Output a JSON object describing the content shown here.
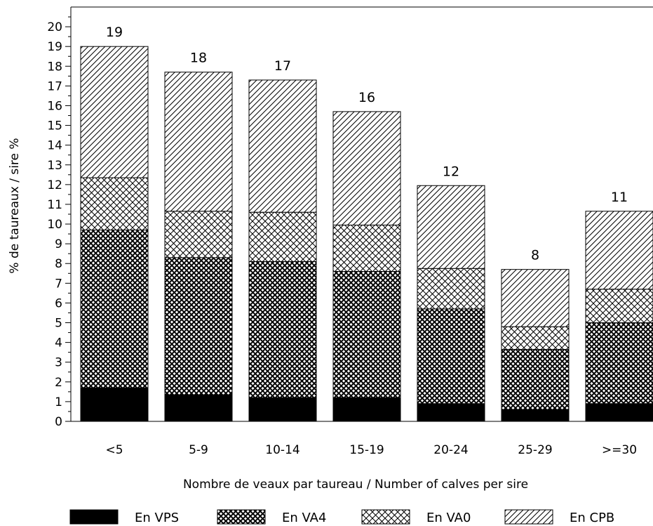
{
  "chart_data": {
    "type": "bar",
    "stacked": true,
    "xlabel": "Nombre de veaux par taureau / Number of calves per sire",
    "ylabel": "% de taureaux / sire %",
    "ylim": [
      0,
      21
    ],
    "yticks": [
      0,
      1,
      2,
      3,
      4,
      5,
      6,
      7,
      8,
      9,
      10,
      11,
      12,
      13,
      14,
      15,
      16,
      17,
      18,
      19,
      20
    ],
    "categories": [
      "<5",
      "5-9",
      "10-14",
      "15-19",
      "20-24",
      "25-29",
      ">=30"
    ],
    "totals_labels": [
      "19",
      "18",
      "17",
      "16",
      "12",
      "8",
      "11"
    ],
    "series": [
      {
        "name": "En VPS",
        "pattern": "solid-black",
        "values": [
          1.7,
          1.35,
          1.2,
          1.2,
          0.9,
          0.6,
          0.9
        ]
      },
      {
        "name": "En VA4",
        "pattern": "dense-crosshatch",
        "values": [
          8.0,
          6.95,
          6.9,
          6.4,
          4.8,
          3.05,
          4.1
        ]
      },
      {
        "name": "En VA0",
        "pattern": "sparse-crosshatch",
        "values": [
          2.65,
          2.35,
          2.5,
          2.35,
          2.05,
          1.15,
          1.7
        ]
      },
      {
        "name": "En CPB",
        "pattern": "diagonal-hatch",
        "values": [
          6.65,
          7.05,
          6.7,
          5.75,
          4.2,
          2.9,
          3.95
        ]
      }
    ],
    "grid": false,
    "legend": "bottom"
  }
}
